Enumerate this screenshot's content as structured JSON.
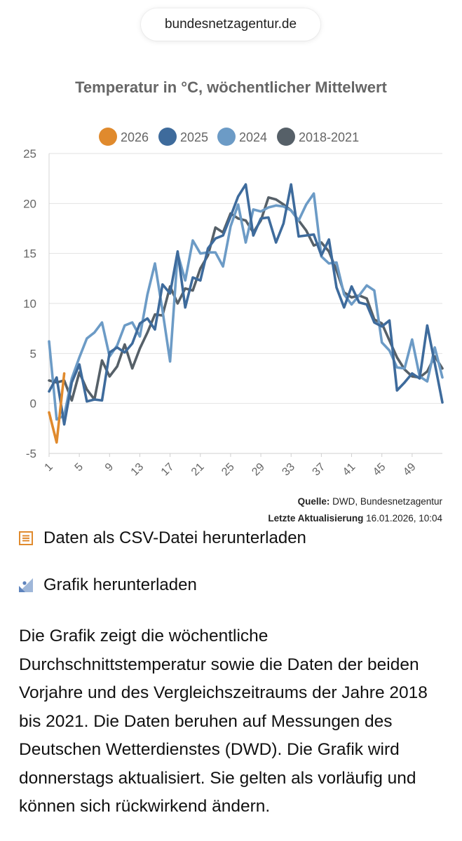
{
  "browser": {
    "url": "bundesnetzagentur.de"
  },
  "chart_data": {
    "type": "line",
    "title": "Temperatur in °C, wöchentlicher Mittelwert",
    "xlabel": "",
    "ylabel": "",
    "ylim": [
      -5,
      25
    ],
    "yticks": [
      -5,
      0,
      5,
      10,
      15,
      20,
      25
    ],
    "xlim": [
      1,
      53
    ],
    "xticks": [
      1,
      5,
      9,
      13,
      17,
      21,
      25,
      29,
      33,
      37,
      41,
      45,
      49
    ],
    "grid": true,
    "legend_position": "top",
    "series": [
      {
        "name": "2026",
        "color": "#e08a2d",
        "x": [
          1,
          2,
          3
        ],
        "y": [
          -0.9,
          -3.9,
          3.0
        ]
      },
      {
        "name": "2025",
        "color": "#3e6b9c",
        "x": [
          1,
          2,
          3,
          4,
          5,
          6,
          7,
          8,
          9,
          10,
          11,
          12,
          13,
          14,
          15,
          16,
          17,
          18,
          19,
          20,
          21,
          22,
          23,
          24,
          25,
          26,
          27,
          28,
          29,
          30,
          31,
          32,
          33,
          34,
          35,
          36,
          37,
          38,
          39,
          40,
          41,
          42,
          43,
          44,
          45,
          46,
          47,
          48,
          49,
          50,
          51,
          52,
          53
        ],
        "y": [
          1.2,
          2.6,
          -2.1,
          2.1,
          3.9,
          0.2,
          0.4,
          0.3,
          5.1,
          5.6,
          5.1,
          6.0,
          8.0,
          8.5,
          7.4,
          11.9,
          11.0,
          15.2,
          9.6,
          12.6,
          12.3,
          15.5,
          16.5,
          16.8,
          18.7,
          20.7,
          21.9,
          16.8,
          18.5,
          18.6,
          16.1,
          18.0,
          21.9,
          16.7,
          16.8,
          16.9,
          14.8,
          16.4,
          11.6,
          9.6,
          11.7,
          10.1,
          9.9,
          8.1,
          7.7,
          8.3,
          1.3,
          2.1,
          3.0,
          2.5,
          7.8,
          4.0,
          0.1
        ]
      },
      {
        "name": "2024",
        "color": "#6c9bc6",
        "x": [
          1,
          2,
          3,
          4,
          5,
          6,
          7,
          8,
          9,
          10,
          11,
          12,
          13,
          14,
          15,
          16,
          17,
          18,
          19,
          20,
          21,
          22,
          23,
          24,
          25,
          26,
          27,
          28,
          29,
          30,
          31,
          32,
          33,
          34,
          35,
          36,
          37,
          38,
          39,
          40,
          41,
          42,
          43,
          44,
          45,
          46,
          47,
          48,
          49,
          50,
          51,
          52,
          53
        ],
        "y": [
          6.2,
          -1.6,
          -1.2,
          2.5,
          4.6,
          6.5,
          7.1,
          8.1,
          4.7,
          5.8,
          7.8,
          8.1,
          6.7,
          10.9,
          14.0,
          9.3,
          4.2,
          15.0,
          12.3,
          16.3,
          15.0,
          15.1,
          15.1,
          13.7,
          17.7,
          19.9,
          16.1,
          19.4,
          19.2,
          19.6,
          19.8,
          19.7,
          19.3,
          18.3,
          19.9,
          21.0,
          14.7,
          14.0,
          14.1,
          10.9,
          9.9,
          10.8,
          11.8,
          11.3,
          6.1,
          5.3,
          3.6,
          3.5,
          6.4,
          2.7,
          2.2,
          5.6,
          2.6
        ]
      },
      {
        "name": "2018-2021",
        "color": "#566068",
        "x": [
          1,
          2,
          3,
          4,
          5,
          6,
          7,
          8,
          9,
          10,
          11,
          12,
          13,
          14,
          15,
          16,
          17,
          18,
          19,
          20,
          21,
          22,
          23,
          24,
          25,
          26,
          27,
          28,
          29,
          30,
          31,
          32,
          33,
          34,
          35,
          36,
          37,
          38,
          39,
          40,
          41,
          42,
          43,
          44,
          45,
          46,
          47,
          48,
          49,
          50,
          51,
          52,
          53
        ],
        "y": [
          2.3,
          2.1,
          2.3,
          0.3,
          3.1,
          1.4,
          0.4,
          4.3,
          2.7,
          3.7,
          5.9,
          3.5,
          5.5,
          7.1,
          8.9,
          8.8,
          11.7,
          10.0,
          11.5,
          11.3,
          13.5,
          14.8,
          17.6,
          17.1,
          19.0,
          18.5,
          18.3,
          17.1,
          18.3,
          20.6,
          20.4,
          19.9,
          19.3,
          18.3,
          17.3,
          15.8,
          16.1,
          15.2,
          13.3,
          11.1,
          10.6,
          10.8,
          10.5,
          8.4,
          8.0,
          6.3,
          4.6,
          3.4,
          2.7,
          2.6,
          3.2,
          4.7,
          3.5
        ]
      }
    ],
    "source_label": "Quelle:",
    "source_value": "DWD, Bundesnetzagentur",
    "updated_label": "Letzte Aktualisierung",
    "updated_value": "16.01.2026, 10:04"
  },
  "downloads": {
    "csv_label": "Daten als CSV-Datei herunterladen",
    "csv_icon": "document-list-icon",
    "image_label": "Grafik herunterladen",
    "image_icon": "image-icon"
  },
  "description": "Die Grafik zeigt die wöchentliche Durchschnittstemperatur sowie die Daten der beiden Vorjahre und des Vergleichszeitraums der Jahre 2018 bis 2021. Die Daten beruhen auf Messungen des Deutschen Wetterdienstes (DWD). Die Grafik wird donnerstags aktualisiert. Sie gelten als vorläufig und können sich rückwirkend ändern."
}
